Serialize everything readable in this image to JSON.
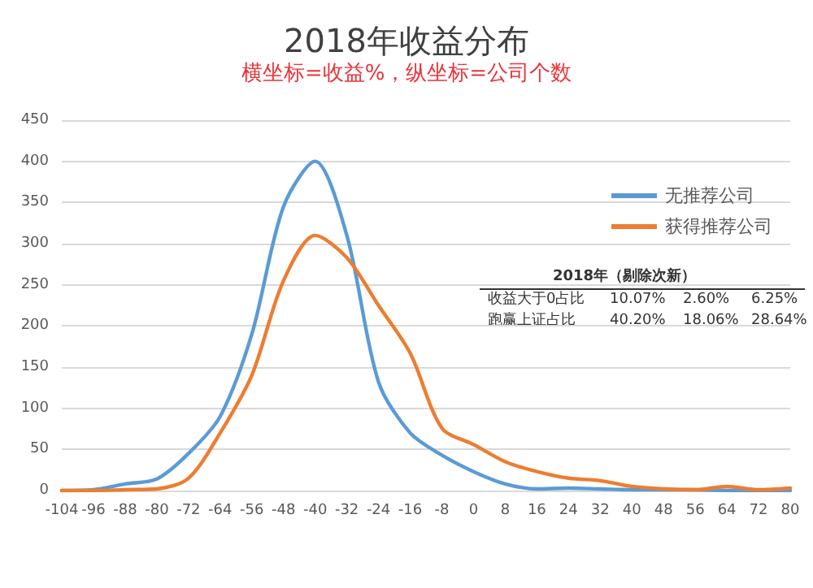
{
  "chart_data": {
    "type": "line",
    "title": "2018年收益分布",
    "subtitle": "横坐标=收益%，纵坐标=公司个数",
    "categories": [
      "-104",
      "-96",
      "-88",
      "-80",
      "-72",
      "-64",
      "-56",
      "-48",
      "-40",
      "-32",
      "-24",
      "-16",
      "-8",
      "0",
      "8",
      "16",
      "24",
      "32",
      "40",
      "48",
      "56",
      "64",
      "72",
      "80"
    ],
    "series": [
      {
        "name": "无推荐公司",
        "color": "#5b9bd5",
        "values": [
          0,
          1,
          8,
          14,
          45,
          90,
          190,
          345,
          400,
          310,
          132,
          70,
          43,
          23,
          8,
          2,
          3,
          2,
          1,
          1,
          1,
          0,
          0,
          0
        ]
      },
      {
        "name": "获得推荐公司",
        "color": "#ed7d31",
        "values": [
          0,
          0,
          1,
          2,
          15,
          70,
          140,
          255,
          310,
          283,
          225,
          167,
          76,
          56,
          35,
          23,
          15,
          12,
          5,
          2,
          1,
          5,
          1,
          3
        ]
      }
    ],
    "ylim": [
      0,
      450
    ],
    "yticks": [
      0,
      50,
      100,
      150,
      200,
      250,
      300,
      350,
      400,
      450
    ],
    "grid": "y",
    "legend": "top right",
    "marker": "none",
    "line_style": "solid",
    "annotations": [
      "2018年（剔除次新）",
      "收益大于0占比",
      "10.07%",
      "2.60%",
      "6.25%",
      "跑赢上证占比",
      "40.20%",
      "18.06%",
      "28.64%"
    ]
  }
}
